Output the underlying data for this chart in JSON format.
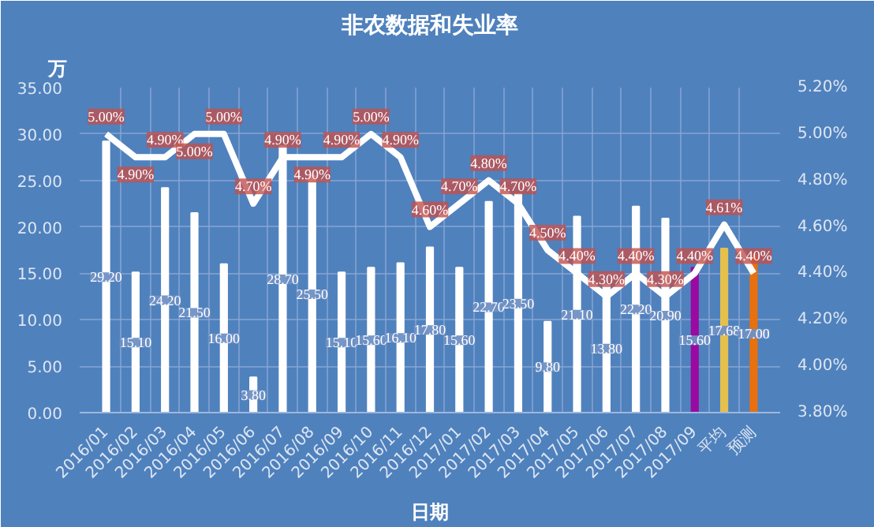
{
  "chart_data": {
    "type": "bar",
    "title": "非农数据和失业率",
    "xlabel": "日期",
    "ylabel": "万",
    "categories": [
      "2016/01",
      "2016/02",
      "2016/03",
      "2016/04",
      "2016/05",
      "2016/06",
      "2016/07",
      "2016/08",
      "2016/09",
      "2016/10",
      "2016/11",
      "2016/12",
      "2017/01",
      "2017/02",
      "2017/03",
      "2017/04",
      "2017/05",
      "2017/06",
      "2017/07",
      "2017/08",
      "2017/09",
      "平均",
      "预测"
    ],
    "series": [
      {
        "values": [
          29.2,
          15.1,
          24.2,
          21.5,
          16.0,
          3.8,
          28.7,
          25.5,
          15.1,
          15.6,
          16.1,
          17.8,
          15.6,
          22.7,
          23.5,
          9.8,
          21.1,
          13.8,
          22.2,
          20.9,
          15.6,
          17.68,
          17.0
        ],
        "colors": [
          "#ffffff",
          "#ffffff",
          "#ffffff",
          "#ffffff",
          "#ffffff",
          "#ffffff",
          "#ffffff",
          "#ffffff",
          "#ffffff",
          "#ffffff",
          "#ffffff",
          "#ffffff",
          "#ffffff",
          "#ffffff",
          "#ffffff",
          "#ffffff",
          "#ffffff",
          "#ffffff",
          "#ffffff",
          "#ffffff",
          "#9b0aa0",
          "#e4c04e",
          "#e8700e"
        ],
        "value_labels": [
          "29.20",
          "15.10",
          "24.20",
          "21.50",
          "16.00",
          "3.80",
          "28.70",
          "25.50",
          "15.10",
          "15.60",
          "16.10",
          "17.80",
          "15.60",
          "22.70",
          "23.50",
          "9.80",
          "21.10",
          "13.80",
          "22.20",
          "20.90",
          "15.60",
          "17.68",
          "17.00"
        ]
      },
      {
        "type": "line",
        "axis": "y2",
        "color": "#ffffff",
        "values": [
          5.0,
          4.9,
          4.9,
          5.0,
          5.0,
          4.7,
          4.9,
          4.9,
          4.9,
          5.0,
          4.9,
          4.6,
          4.7,
          4.8,
          4.7,
          4.5,
          4.4,
          4.3,
          4.4,
          4.3,
          4.4,
          4.61,
          4.4
        ],
        "value_labels": [
          "5.00%",
          "4.90%",
          "4.90%",
          "5.00%",
          "5.00%",
          "4.70%",
          "4.90%",
          "4.90%",
          "4.90%",
          "5.00%",
          "4.90%",
          "4.60%",
          "4.70%",
          "4.80%",
          "4.70%",
          "4.50%",
          "4.40%",
          "4.30%",
          "4.40%",
          "4.30%",
          "4.40%",
          "4.61%",
          "4.40%"
        ]
      }
    ],
    "ylim": [
      0,
      35
    ],
    "yticks": [
      {
        "value": 0,
        "label": "0.00"
      },
      {
        "value": 5,
        "label": "5.00"
      },
      {
        "value": 10,
        "label": "10.00"
      },
      {
        "value": 15,
        "label": "15.00"
      },
      {
        "value": 20,
        "label": "20.00"
      },
      {
        "value": 25,
        "label": "25.00"
      },
      {
        "value": 30,
        "label": "30.00"
      },
      {
        "value": 35,
        "label": "35.00"
      }
    ],
    "y2lim": [
      3.8,
      5.2
    ],
    "y2ticks": [
      {
        "value": 3.8,
        "label": "3.80%"
      },
      {
        "value": 4.0,
        "label": "4.00%"
      },
      {
        "value": 4.2,
        "label": "4.20%"
      },
      {
        "value": 4.4,
        "label": "4.40%"
      },
      {
        "value": 4.6,
        "label": "4.60%"
      },
      {
        "value": 4.8,
        "label": "4.80%"
      },
      {
        "value": 5.0,
        "label": "5.00%"
      },
      {
        "value": 5.2,
        "label": "5.20%"
      }
    ],
    "grid": true
  }
}
